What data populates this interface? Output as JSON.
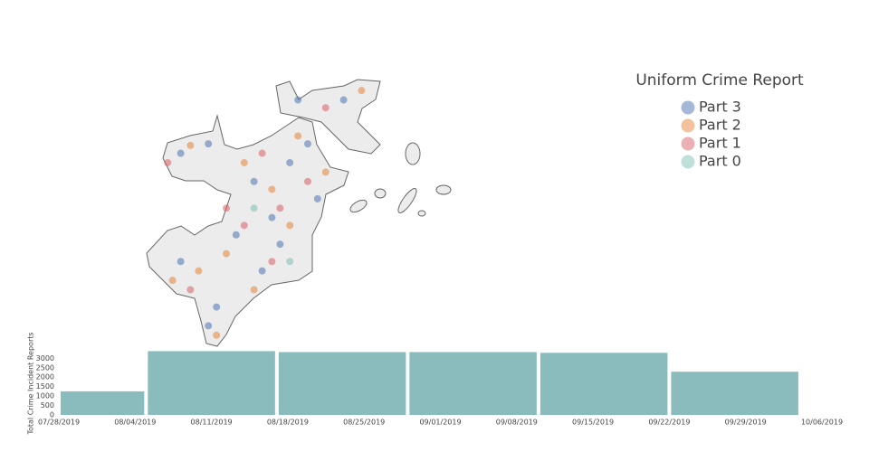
{
  "chart_data": [
    {
      "type": "map-scatter",
      "legend_title": "Uniform Crime Report",
      "series": [
        {
          "name": "Part 3",
          "color": "#4c72b0",
          "lon": [
            -71.168,
            -71.151,
            -71.123,
            -71.112,
            -71.101,
            -71.09,
            -71.134,
            -71.118,
            -71.168,
            -71.146,
            -71.096,
            -71.068,
            -71.107,
            -71.151,
            -71.084
          ],
          "lat": [
            42.353,
            42.359,
            42.335,
            42.312,
            42.347,
            42.359,
            42.301,
            42.278,
            42.284,
            42.255,
            42.387,
            42.387,
            42.295,
            42.243,
            42.324
          ]
        },
        {
          "name": "Part 2",
          "color": "#e8853a",
          "lon": [
            -71.162,
            -71.129,
            -71.112,
            -71.096,
            -71.14,
            -71.157,
            -71.123,
            -71.101,
            -71.079,
            -71.057,
            -71.146,
            -71.173
          ],
          "lat": [
            42.358,
            42.347,
            42.33,
            42.364,
            42.289,
            42.278,
            42.266,
            42.307,
            42.341,
            42.393,
            42.237,
            42.272
          ]
        },
        {
          "name": "Part 1",
          "color": "#d9606a",
          "lon": [
            -71.176,
            -71.118,
            -71.107,
            -71.129,
            -71.09,
            -71.162,
            -71.112,
            -71.079,
            -71.14
          ],
          "lat": [
            42.347,
            42.353,
            42.318,
            42.307,
            42.335,
            42.266,
            42.284,
            42.382,
            42.318
          ]
        },
        {
          "name": "Part 0",
          "color": "#7fbfb5",
          "lon": [
            -71.123,
            -71.101
          ],
          "lat": [
            42.318,
            42.284
          ]
        }
      ]
    },
    {
      "type": "histogram",
      "y_label": "Total Crime Incident Reports",
      "color": "#8abcbe",
      "bins": [
        "07/28/2019",
        "08/05/2019",
        "08/17/2019",
        "08/29/2019",
        "09/10/2019",
        "09/22/2019",
        "10/04/2019"
      ],
      "values": [
        1250,
        3380,
        3330,
        3330,
        3290,
        2290
      ],
      "xlim": [
        "07/28/2019",
        "10/06/2019"
      ],
      "xticks": [
        "07/28/2019",
        "08/04/2019",
        "08/11/2019",
        "08/18/2019",
        "08/25/2019",
        "09/01/2019",
        "09/08/2019",
        "09/15/2019",
        "09/22/2019",
        "09/29/2019",
        "10/06/2019"
      ],
      "ylim": [
        0,
        3400
      ],
      "yticks": [
        0,
        500,
        1000,
        1500,
        2000,
        2500,
        3000
      ]
    }
  ]
}
